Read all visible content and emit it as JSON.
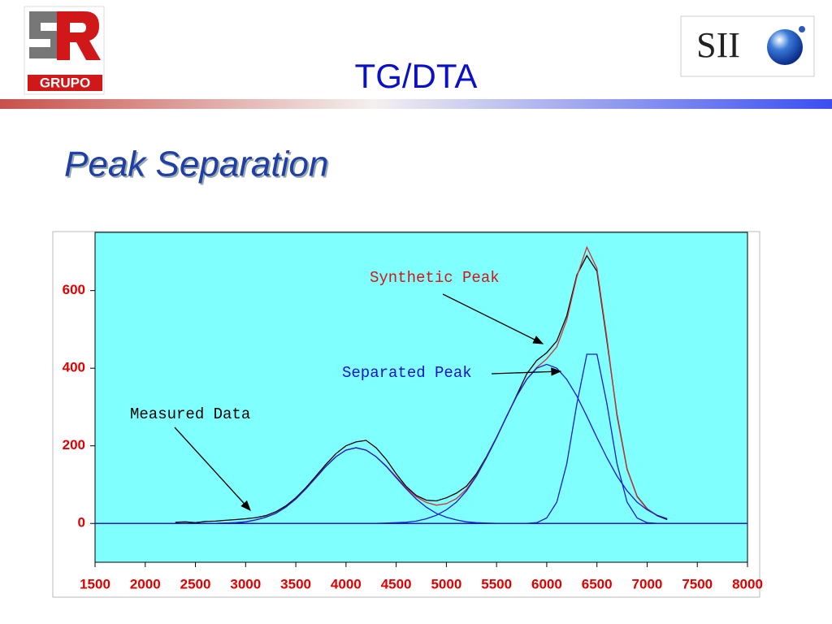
{
  "header": {
    "title": "TG/DTA",
    "subtitle": "Peak Separation",
    "left_logo": "GRUPO",
    "right_logo": "SII"
  },
  "chart_data": {
    "type": "line",
    "x": [
      2300,
      2400,
      2500,
      2600,
      2700,
      2800,
      2900,
      3000,
      3100,
      3200,
      3300,
      3400,
      3500,
      3600,
      3700,
      3800,
      3900,
      4000,
      4100,
      4200,
      4300,
      4400,
      4500,
      4600,
      4700,
      4800,
      4900,
      5000,
      5100,
      5200,
      5300,
      5400,
      5500,
      5600,
      5700,
      5800,
      5900,
      6000,
      6100,
      6200,
      6300,
      6400,
      6500,
      6600,
      6700,
      6800,
      6900,
      7000,
      7100,
      7200
    ],
    "series": [
      {
        "color": "#000000",
        "values": [
          3,
          4,
          2,
          5,
          6,
          8,
          10,
          12,
          15,
          20,
          30,
          45,
          66,
          92,
          122,
          152,
          180,
          200,
          210,
          214,
          195,
          165,
          128,
          95,
          72,
          60,
          58,
          66,
          78,
          96,
          128,
          172,
          222,
          275,
          330,
          385,
          420,
          440,
          470,
          535,
          640,
          690,
          650,
          470,
          280,
          140,
          70,
          38,
          20,
          10
        ]
      },
      {
        "color": "#d03030",
        "values": [
          0,
          0,
          0,
          0,
          0,
          1,
          2,
          4,
          9,
          16,
          26,
          42,
          63,
          89,
          118,
          147,
          172,
          189,
          195,
          189,
          172,
          148,
          120,
          92,
          69,
          54,
          47,
          51,
          64,
          88,
          124,
          170,
          221,
          276,
          328,
          371,
          402,
          424,
          455,
          525,
          636,
          712,
          657,
          477,
          276,
          139,
          69,
          37,
          21,
          12
        ]
      },
      {
        "color": "#1a1acc",
        "values": [
          0,
          0,
          0,
          0,
          0,
          1,
          2,
          4,
          9,
          16,
          26,
          42,
          63,
          89,
          118,
          147,
          172,
          189,
          195,
          189,
          172,
          147,
          118,
          89,
          63,
          42,
          26,
          16,
          9,
          4,
          2,
          1,
          0,
          0,
          0,
          0,
          0,
          0,
          0,
          0,
          0,
          0,
          0,
          0,
          0,
          0,
          0,
          0,
          0,
          0
        ]
      },
      {
        "color": "#1a1acc",
        "values": [
          0,
          0,
          0,
          0,
          0,
          0,
          0,
          0,
          0,
          0,
          0,
          0,
          0,
          0,
          0,
          0,
          0,
          0,
          0,
          0,
          0,
          1,
          2,
          3,
          6,
          12,
          21,
          35,
          55,
          84,
          122,
          169,
          221,
          276,
          328,
          371,
          400,
          410,
          400,
          371,
          328,
          276,
          221,
          169,
          122,
          84,
          55,
          35,
          21,
          12
        ]
      },
      {
        "color": "#1a1acc",
        "values": [
          0,
          0,
          0,
          0,
          0,
          0,
          0,
          0,
          0,
          0,
          0,
          0,
          0,
          0,
          0,
          0,
          0,
          0,
          0,
          0,
          0,
          0,
          0,
          0,
          0,
          0,
          0,
          0,
          0,
          0,
          0,
          0,
          0,
          0,
          0,
          0,
          2,
          14,
          55,
          154,
          308,
          436,
          436,
          308,
          154,
          55,
          14,
          2,
          0,
          0
        ]
      }
    ],
    "annotations": [
      "Synthetic Peak",
      "Separated Peak",
      "Measured Data"
    ],
    "xlim": [
      1500,
      8000
    ],
    "xticks": [
      1500,
      2000,
      2500,
      3000,
      3500,
      4000,
      4500,
      5000,
      5500,
      6000,
      6500,
      7000,
      7500,
      8000
    ],
    "ylim": [
      -100,
      750
    ],
    "yticks": [
      0,
      200,
      400,
      600
    ]
  }
}
